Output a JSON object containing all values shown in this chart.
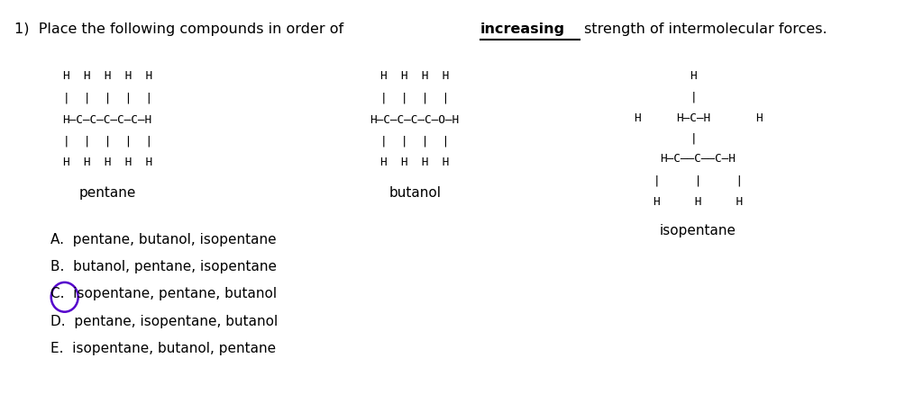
{
  "background_color": "#ffffff",
  "figsize": [
    10.24,
    4.39
  ],
  "dpi": 100,
  "title_part1": "1)  Place the following compounds in order of ",
  "title_increasing": "increasing",
  "title_part2": " strength of intermolecular forces.",
  "options": [
    "A.  pentane, butanol, isopentane",
    "B.  butanol, pentane, isopentane",
    "C.  isopentane, pentane, butanol",
    "D.  pentane, isopentane, butanol",
    "E.  isopentane, butanol, pentane"
  ],
  "circle_color": "#5500cc",
  "compound_labels": [
    "pentane",
    "butanol",
    "isopentane"
  ],
  "title_fontsize": 11.5,
  "struct_fontsize": 9.2,
  "label_fontsize": 11,
  "option_fontsize": 11
}
